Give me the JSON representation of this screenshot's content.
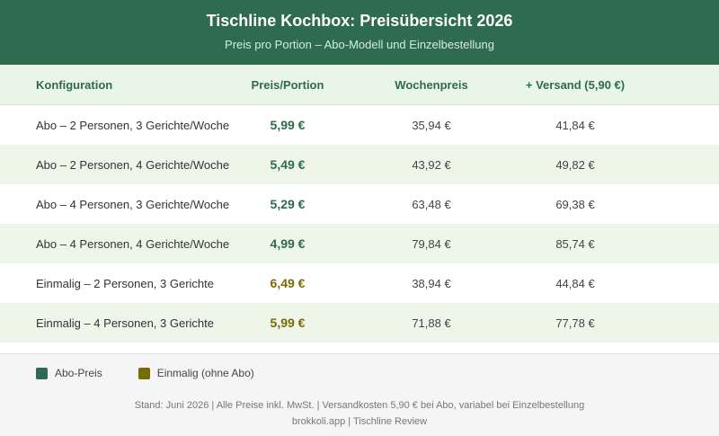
{
  "header": {
    "title": "Tischline Kochbox: Preisübersicht 2026",
    "subtitle": "Preis pro Portion – Abo-Modell und Einzelbestellung"
  },
  "table": {
    "columns": [
      "Konfiguration",
      "Preis/Portion",
      "Wochenpreis",
      "+ Versand (5,90 €)"
    ],
    "rows": [
      {
        "config": "Abo – 2 Personen, 3 Gerichte/Woche",
        "price": "5,99 €",
        "week": "35,94 €",
        "shipping": "41,84 €",
        "type": "abo"
      },
      {
        "config": "Abo – 2 Personen, 4 Gerichte/Woche",
        "price": "5,49 €",
        "week": "43,92 €",
        "shipping": "49,82 €",
        "type": "abo"
      },
      {
        "config": "Abo – 4 Personen, 3 Gerichte/Woche",
        "price": "5,29 €",
        "week": "63,48 €",
        "shipping": "69,38 €",
        "type": "abo"
      },
      {
        "config": "Abo – 4 Personen, 4 Gerichte/Woche",
        "price": "4,99 €",
        "week": "79,84 €",
        "shipping": "85,74 €",
        "type": "abo"
      },
      {
        "config": "Einmalig – 2 Personen, 3 Gerichte",
        "price": "6,49 €",
        "week": "38,94 €",
        "shipping": "44,84 €",
        "type": "einmal"
      },
      {
        "config": "Einmalig – 4 Personen, 3 Gerichte",
        "price": "5,99 €",
        "week": "71,88 €",
        "shipping": "77,78 €",
        "type": "einmal"
      }
    ]
  },
  "legend": {
    "abo": {
      "label": "Abo-Preis",
      "color": "#2e6b4f"
    },
    "einmal": {
      "label": "Einmalig (ohne Abo)",
      "color": "#7a6b00"
    }
  },
  "footer": {
    "note": "Stand: Juni 2026 | Alle Preise inkl. MwSt. | Versandkosten 5,90 € bei Abo, variabel bei Einzelbestellung",
    "source": "brokkoli.app | Tischline Review"
  }
}
